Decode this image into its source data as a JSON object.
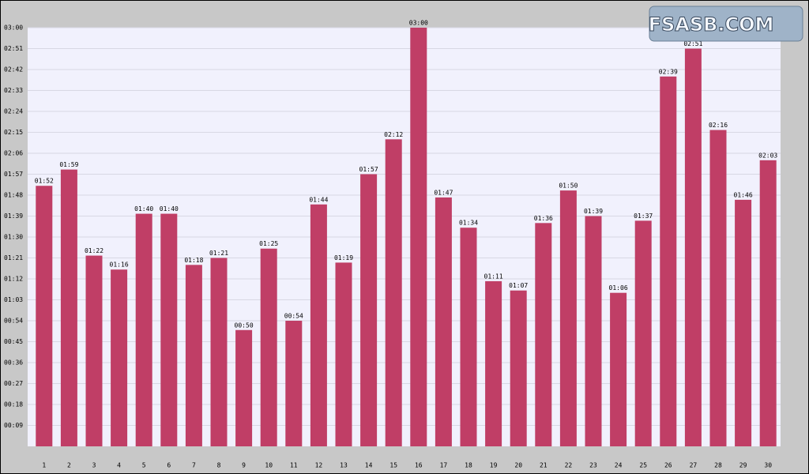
{
  "chart_data": {
    "type": "bar",
    "watermark": "FSASB.COM",
    "categories": [
      "1",
      "2",
      "3",
      "4",
      "5",
      "6",
      "7",
      "8",
      "9",
      "10",
      "11",
      "12",
      "13",
      "14",
      "15",
      "16",
      "17",
      "18",
      "19",
      "20",
      "21",
      "22",
      "23",
      "24",
      "25",
      "26",
      "27",
      "28",
      "29",
      "30"
    ],
    "values": [
      112,
      119,
      82,
      76,
      100,
      100,
      78,
      81,
      50,
      85,
      54,
      104,
      79,
      117,
      132,
      180,
      107,
      94,
      71,
      67,
      96,
      110,
      99,
      66,
      97,
      159,
      171,
      136,
      106,
      123
    ],
    "value_labels": [
      "01:52",
      "01:59",
      "01:22",
      "01:16",
      "01:40",
      "01:40",
      "01:18",
      "01:21",
      "00:50",
      "01:25",
      "00:54",
      "01:44",
      "01:19",
      "01:57",
      "02:12",
      "03:00",
      "01:47",
      "01:34",
      "01:11",
      "01:07",
      "01:36",
      "01:50",
      "01:39",
      "01:06",
      "01:37",
      "02:39",
      "02:51",
      "02:16",
      "01:46",
      "02:03"
    ],
    "color": "#c03e66",
    "ylim": [
      0,
      180
    ],
    "yticks": [
      {
        "value": 9,
        "label": "00:09"
      },
      {
        "value": 18,
        "label": "00:18"
      },
      {
        "value": 27,
        "label": "00:27"
      },
      {
        "value": 36,
        "label": "00:36"
      },
      {
        "value": 45,
        "label": "00:45"
      },
      {
        "value": 54,
        "label": "00:54"
      },
      {
        "value": 63,
        "label": "01:03"
      },
      {
        "value": 72,
        "label": "01:12"
      },
      {
        "value": 81,
        "label": "01:21"
      },
      {
        "value": 90,
        "label": "01:30"
      },
      {
        "value": 99,
        "label": "01:39"
      },
      {
        "value": 108,
        "label": "01:48"
      },
      {
        "value": 117,
        "label": "01:57"
      },
      {
        "value": 126,
        "label": "02:06"
      },
      {
        "value": 135,
        "label": "02:15"
      },
      {
        "value": 144,
        "label": "02:24"
      },
      {
        "value": 153,
        "label": "02:33"
      },
      {
        "value": 162,
        "label": "02:42"
      },
      {
        "value": 171,
        "label": "02:51"
      },
      {
        "value": 180,
        "label": "03:00"
      }
    ],
    "grid": true
  }
}
